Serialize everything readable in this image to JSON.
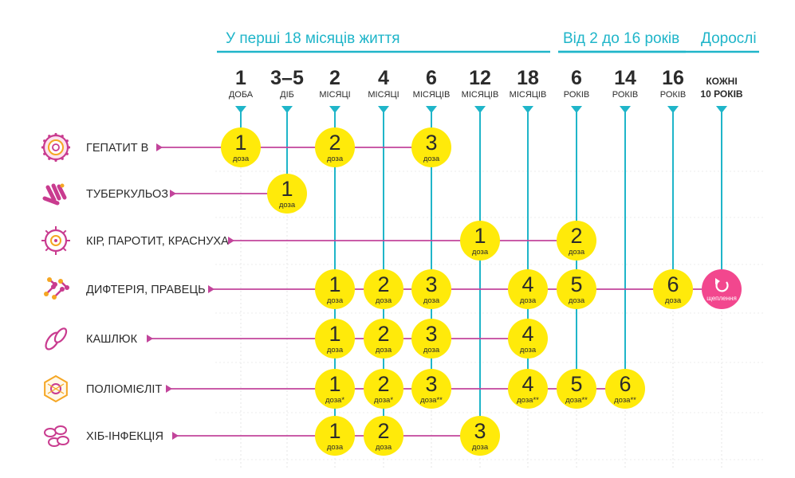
{
  "colors": {
    "accent": "#1fb5c9",
    "vaccine_line": "#c2449b",
    "dose_fill": "#ffea0a",
    "booster_fill": "#f2478e",
    "text": "#2b2b2b",
    "icon_magenta": "#c93b8f",
    "icon_orange": "#f5a623"
  },
  "periods": [
    {
      "label": "У перші 18 місяців життя",
      "first_col": 0,
      "last_col": 6
    },
    {
      "label": "Від 2 до 16 років",
      "first_col": 7,
      "last_col": 9
    },
    {
      "label": "Дорослі",
      "first_col": 10,
      "last_col": 10
    }
  ],
  "columns": [
    {
      "num": "1",
      "unit": "ДОБА"
    },
    {
      "num": "3–5",
      "unit": "ДІБ"
    },
    {
      "num": "2",
      "unit": "МІСЯЦІ"
    },
    {
      "num": "4",
      "unit": "МІСЯЦІ"
    },
    {
      "num": "6",
      "unit": "МІСЯЦІВ"
    },
    {
      "num": "12",
      "unit": "МІСЯЦІВ"
    },
    {
      "num": "18",
      "unit": "МІСЯЦІВ"
    },
    {
      "num": "6",
      "unit": "РОКІВ"
    },
    {
      "num": "14",
      "unit": "РОКІВ"
    },
    {
      "num": "16",
      "unit": "РОКІВ"
    },
    {
      "line1": "КОЖНІ",
      "line2": "10 РОКІВ"
    }
  ],
  "vaccines": [
    {
      "label": "ГЕПАТИТ В",
      "icon": "hepatitis-b-virus-icon",
      "doses": [
        {
          "col": 0,
          "num": "1",
          "text": "доза"
        },
        {
          "col": 2,
          "num": "2",
          "text": "доза"
        },
        {
          "col": 4,
          "num": "3",
          "text": "доза"
        }
      ]
    },
    {
      "label": "ТУБЕРКУЛЬОЗ",
      "icon": "tuberculosis-bacteria-icon",
      "doses": [
        {
          "col": 1,
          "num": "1",
          "text": "доза"
        }
      ]
    },
    {
      "label": "КІР, ПАРОТИТ, КРАСНУХА",
      "icon": "measles-virus-icon",
      "doses": [
        {
          "col": 5,
          "num": "1",
          "text": "доза"
        },
        {
          "col": 7,
          "num": "2",
          "text": "доза"
        }
      ]
    },
    {
      "label": "ДИФТЕРІЯ, ПРАВЕЦЬ",
      "icon": "diphtheria-bacteria-icon",
      "doses": [
        {
          "col": 2,
          "num": "1",
          "text": "доза"
        },
        {
          "col": 3,
          "num": "2",
          "text": "доза"
        },
        {
          "col": 4,
          "num": "3",
          "text": "доза"
        },
        {
          "col": 6,
          "num": "4",
          "text": "доза"
        },
        {
          "col": 7,
          "num": "5",
          "text": "доза"
        },
        {
          "col": 9,
          "num": "6",
          "text": "доза"
        }
      ],
      "booster": {
        "col": 10,
        "text": "щеплення",
        "icon": "repeat-arrow-icon"
      }
    },
    {
      "label": "КАШЛЮК",
      "icon": "pertussis-bacteria-icon",
      "doses": [
        {
          "col": 2,
          "num": "1",
          "text": "доза"
        },
        {
          "col": 3,
          "num": "2",
          "text": "доза"
        },
        {
          "col": 4,
          "num": "3",
          "text": "доза"
        },
        {
          "col": 6,
          "num": "4",
          "text": "доза"
        }
      ]
    },
    {
      "label": "ПОЛІОМІЄЛІТ",
      "icon": "poliovirus-icon",
      "doses": [
        {
          "col": 2,
          "num": "1",
          "text": "доза*"
        },
        {
          "col": 3,
          "num": "2",
          "text": "доза*"
        },
        {
          "col": 4,
          "num": "3",
          "text": "доза**"
        },
        {
          "col": 6,
          "num": "4",
          "text": "доза**"
        },
        {
          "col": 7,
          "num": "5",
          "text": "доза**"
        },
        {
          "col": 8,
          "num": "6",
          "text": "доза**"
        }
      ]
    },
    {
      "label": "ХІБ-ІНФЕКЦІЯ",
      "icon": "hib-bacteria-icon",
      "doses": [
        {
          "col": 2,
          "num": "1",
          "text": "доза"
        },
        {
          "col": 3,
          "num": "2",
          "text": "доза"
        },
        {
          "col": 5,
          "num": "3",
          "text": "доза"
        }
      ]
    }
  ]
}
